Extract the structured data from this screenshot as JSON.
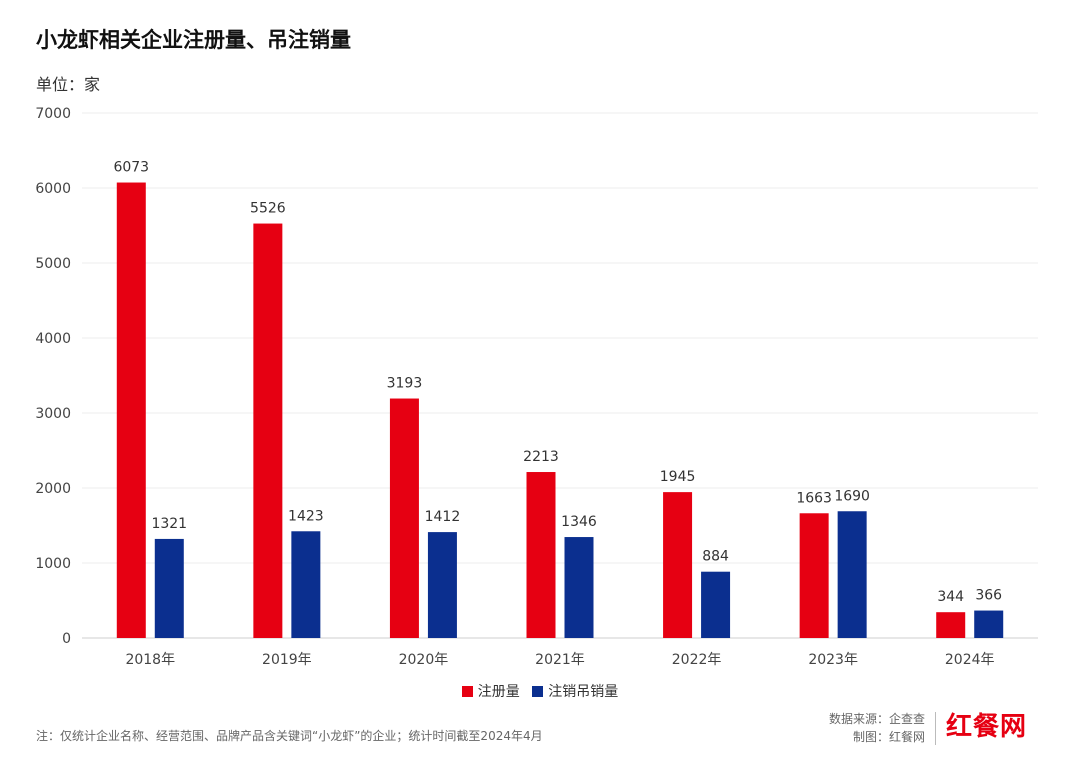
{
  "header": {
    "title": "小龙虾相关企业注册量、吊注销量",
    "unit": "单位：家"
  },
  "legend": {
    "items": [
      {
        "label": "注册量",
        "color": "#e60012"
      },
      {
        "label": "注销吊销量",
        "color": "#0b2f8f"
      }
    ]
  },
  "footer": {
    "note": "注：仅统计企业名称、经营范围、品牌产品含关键词“小龙虾”的企业；统计时间截至2024年4月",
    "source": "数据来源：企查查",
    "made_by": "制图：红餐网",
    "logo_text": "红餐网"
  },
  "chart_data": {
    "type": "bar",
    "title": "小龙虾相关企业注册量、吊注销量",
    "ylabel": "单位：家",
    "xlabel": "",
    "categories": [
      "2018年",
      "2019年",
      "2020年",
      "2021年",
      "2022年",
      "2023年",
      "2024年"
    ],
    "ylim": [
      0,
      7000
    ],
    "yticks": [
      0,
      1000,
      2000,
      3000,
      4000,
      5000,
      6000,
      7000
    ],
    "grid": true,
    "legend_position": "bottom",
    "series": [
      {
        "name": "注册量",
        "color": "#e60012",
        "values": [
          6073,
          5526,
          3193,
          2213,
          1945,
          1663,
          344
        ]
      },
      {
        "name": "注销吊销量",
        "color": "#0b2f8f",
        "values": [
          1321,
          1423,
          1412,
          1346,
          884,
          1690,
          366
        ]
      }
    ]
  }
}
